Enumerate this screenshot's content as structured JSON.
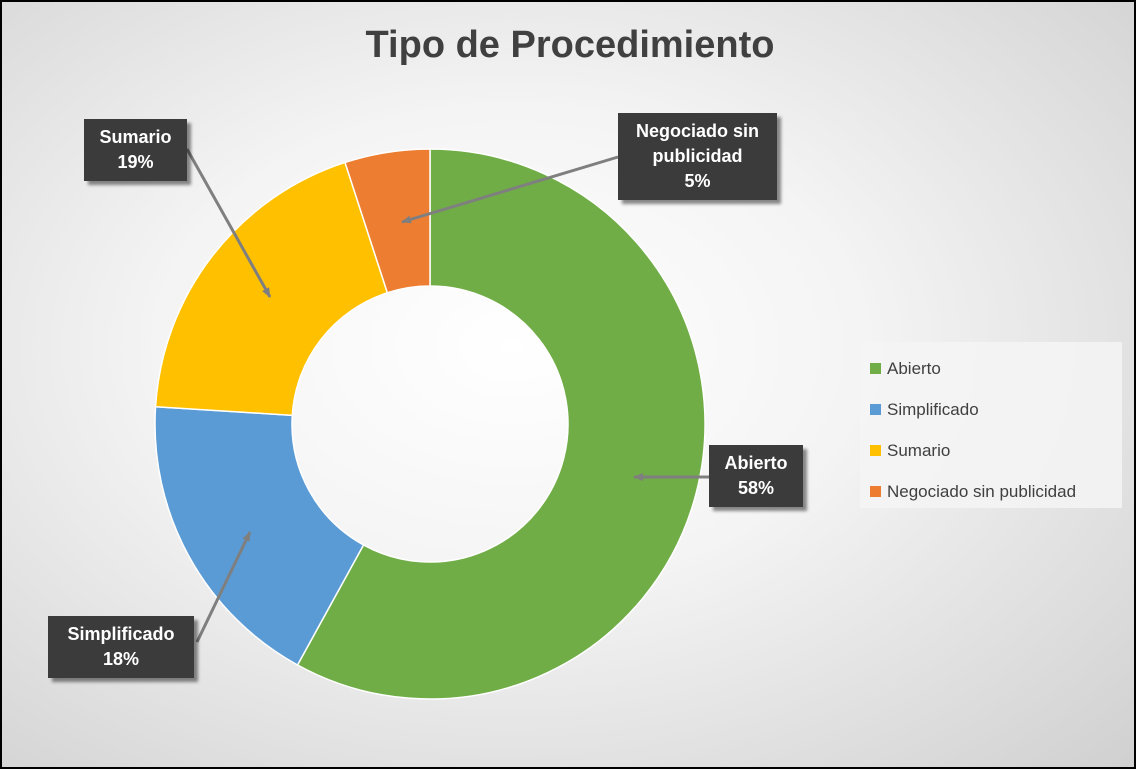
{
  "chart_data": {
    "type": "donut",
    "title": "Tipo de Procedimiento",
    "categories": [
      "Abierto",
      "Simplificado",
      "Sumario",
      "Negociado sin publicidad"
    ],
    "values": [
      58,
      18,
      19,
      5
    ],
    "value_labels": [
      "58%",
      "18%",
      "19%",
      "5%"
    ],
    "colors": [
      "#70ad47",
      "#5b9bd5",
      "#ffc000",
      "#ed7d31"
    ],
    "legend": "right"
  }
}
